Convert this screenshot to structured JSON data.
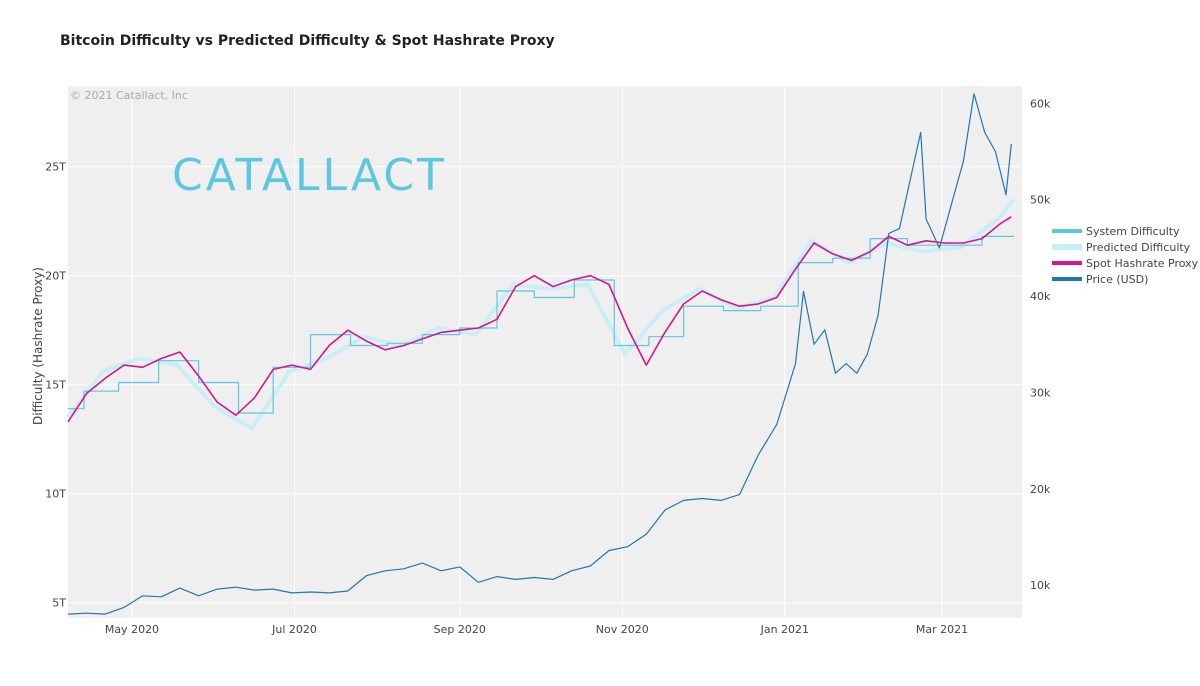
{
  "chart_data": {
    "type": "line",
    "title": "Bitcoin Difficulty vs Predicted Difficulty & Spot Hashrate Proxy",
    "copyright": "© 2021 Catallact, Inc",
    "logo_text": "CATALLACT",
    "ylabel": "Difficulty (Hashrate Proxy)",
    "y2label": "",
    "x_tick_labels": [
      "May 2020",
      "Jul 2020",
      "Sep 2020",
      "Nov 2020",
      "Jan 2021",
      "Mar 2021"
    ],
    "x_tick_dates": [
      "2020-05-01",
      "2020-07-01",
      "2020-09-01",
      "2020-11-01",
      "2021-01-01",
      "2021-03-01"
    ],
    "xlim": [
      "2020-04-07",
      "2021-03-31"
    ],
    "y_tick_labels": [
      "5T",
      "10T",
      "15T",
      "20T",
      "25T"
    ],
    "y_tick_values": [
      5,
      10,
      15,
      20,
      25
    ],
    "ylim": [
      4.3,
      28.7
    ],
    "y2_tick_labels": [
      "10k",
      "20k",
      "30k",
      "40k",
      "50k",
      "60k"
    ],
    "y2_tick_values": [
      10000,
      20000,
      30000,
      40000,
      50000,
      60000
    ],
    "y2lim": [
      6600,
      61800
    ],
    "legend_position": "right",
    "grid": true,
    "series": [
      {
        "name": "System Difficulty",
        "color": "#5ec7e0",
        "axis": "left",
        "shape": "step",
        "x": [
          "2020-04-07",
          "2020-04-13",
          "2020-04-26",
          "2020-05-11",
          "2020-05-26",
          "2020-06-10",
          "2020-06-23",
          "2020-07-07",
          "2020-07-22",
          "2020-08-05",
          "2020-08-18",
          "2020-09-01",
          "2020-09-15",
          "2020-09-29",
          "2020-10-14",
          "2020-10-29",
          "2020-11-11",
          "2020-11-24",
          "2020-12-09",
          "2020-12-23",
          "2021-01-06",
          "2021-01-19",
          "2021-02-02",
          "2021-02-16",
          "2021-03-02",
          "2021-03-16",
          "2021-03-28"
        ],
        "y": [
          13.9,
          14.7,
          15.1,
          16.1,
          15.1,
          13.7,
          15.8,
          17.3,
          16.8,
          16.9,
          17.3,
          17.6,
          19.3,
          19.0,
          19.8,
          16.8,
          17.2,
          18.6,
          18.4,
          18.6,
          20.6,
          20.8,
          21.7,
          21.4,
          21.4,
          21.8,
          21.8
        ]
      },
      {
        "name": "Predicted Difficulty",
        "color": "#c9eef7",
        "axis": "left",
        "x": [
          "2020-04-07",
          "2020-04-20",
          "2020-05-04",
          "2020-05-18",
          "2020-06-01",
          "2020-06-15",
          "2020-06-29",
          "2020-07-13",
          "2020-07-27",
          "2020-08-10",
          "2020-08-24",
          "2020-09-07",
          "2020-09-21",
          "2020-10-05",
          "2020-10-19",
          "2020-11-02",
          "2020-11-16",
          "2020-11-30",
          "2020-12-14",
          "2020-12-28",
          "2021-01-11",
          "2021-01-25",
          "2021-02-08",
          "2021-02-22",
          "2021-03-08",
          "2021-03-22",
          "2021-03-28"
        ],
        "y": [
          13.5,
          15.6,
          16.2,
          15.9,
          14.0,
          13.0,
          15.6,
          16.2,
          17.2,
          16.8,
          17.6,
          17.3,
          19.6,
          19.4,
          19.6,
          16.4,
          18.4,
          19.4,
          18.5,
          19.0,
          21.6,
          20.6,
          21.5,
          21.1,
          21.3,
          22.6,
          23.5
        ]
      },
      {
        "name": "Spot Hashrate Proxy",
        "color": "#d4168b",
        "axis": "left",
        "x": [
          "2020-04-07",
          "2020-04-14",
          "2020-04-21",
          "2020-04-28",
          "2020-05-05",
          "2020-05-12",
          "2020-05-19",
          "2020-05-26",
          "2020-06-02",
          "2020-06-09",
          "2020-06-16",
          "2020-06-23",
          "2020-06-30",
          "2020-07-07",
          "2020-07-14",
          "2020-07-21",
          "2020-07-28",
          "2020-08-04",
          "2020-08-11",
          "2020-08-18",
          "2020-08-25",
          "2020-09-01",
          "2020-09-08",
          "2020-09-15",
          "2020-09-22",
          "2020-09-29",
          "2020-10-06",
          "2020-10-13",
          "2020-10-20",
          "2020-10-27",
          "2020-11-03",
          "2020-11-10",
          "2020-11-17",
          "2020-11-24",
          "2020-12-01",
          "2020-12-08",
          "2020-12-15",
          "2020-12-22",
          "2020-12-29",
          "2021-01-05",
          "2021-01-12",
          "2021-01-19",
          "2021-01-26",
          "2021-02-02",
          "2021-02-09",
          "2021-02-16",
          "2021-02-23",
          "2021-03-02",
          "2021-03-09",
          "2021-03-16",
          "2021-03-23",
          "2021-03-27"
        ],
        "y": [
          13.3,
          14.6,
          15.3,
          15.9,
          15.8,
          16.2,
          16.5,
          15.4,
          14.2,
          13.6,
          14.4,
          15.7,
          15.9,
          15.7,
          16.8,
          17.5,
          17.0,
          16.6,
          16.8,
          17.1,
          17.4,
          17.5,
          17.6,
          18.0,
          19.5,
          20.0,
          19.5,
          19.8,
          20.0,
          19.6,
          17.6,
          15.9,
          17.4,
          18.7,
          19.3,
          18.9,
          18.6,
          18.7,
          19.0,
          20.3,
          21.5,
          21.0,
          20.7,
          21.1,
          21.8,
          21.4,
          21.6,
          21.5,
          21.5,
          21.7,
          22.4,
          22.7
        ]
      },
      {
        "name": "Price (USD)",
        "color": "#1f77b4",
        "axis": "right",
        "x": [
          "2020-04-07",
          "2020-04-14",
          "2020-04-21",
          "2020-04-28",
          "2020-05-05",
          "2020-05-12",
          "2020-05-19",
          "2020-05-26",
          "2020-06-02",
          "2020-06-09",
          "2020-06-16",
          "2020-06-23",
          "2020-06-30",
          "2020-07-07",
          "2020-07-14",
          "2020-07-21",
          "2020-07-28",
          "2020-08-04",
          "2020-08-11",
          "2020-08-18",
          "2020-08-25",
          "2020-09-01",
          "2020-09-08",
          "2020-09-15",
          "2020-09-22",
          "2020-09-29",
          "2020-10-06",
          "2020-10-13",
          "2020-10-20",
          "2020-10-27",
          "2020-11-03",
          "2020-11-10",
          "2020-11-17",
          "2020-11-24",
          "2020-12-01",
          "2020-12-08",
          "2020-12-15",
          "2020-12-22",
          "2020-12-29",
          "2021-01-05",
          "2021-01-08",
          "2021-01-12",
          "2021-01-16",
          "2021-01-20",
          "2021-01-24",
          "2021-01-28",
          "2021-02-01",
          "2021-02-05",
          "2021-02-09",
          "2021-02-13",
          "2021-02-17",
          "2021-02-21",
          "2021-02-23",
          "2021-02-28",
          "2021-03-05",
          "2021-03-09",
          "2021-03-13",
          "2021-03-17",
          "2021-03-21",
          "2021-03-25",
          "2021-03-27"
        ],
        "y": [
          7000,
          7100,
          7000,
          7700,
          8900,
          8800,
          9700,
          8900,
          9600,
          9800,
          9500,
          9600,
          9200,
          9300,
          9200,
          9400,
          11000,
          11500,
          11700,
          12300,
          11500,
          11900,
          10300,
          10900,
          10600,
          10800,
          10600,
          11500,
          12000,
          13600,
          14000,
          15300,
          17800,
          18800,
          19000,
          18800,
          19400,
          23500,
          26700,
          33000,
          40500,
          35000,
          36500,
          32000,
          33000,
          32000,
          34000,
          38000,
          46500,
          47000,
          52000,
          57000,
          48000,
          45000,
          50000,
          54000,
          61000,
          57000,
          55000,
          50500,
          55800
        ]
      }
    ]
  }
}
